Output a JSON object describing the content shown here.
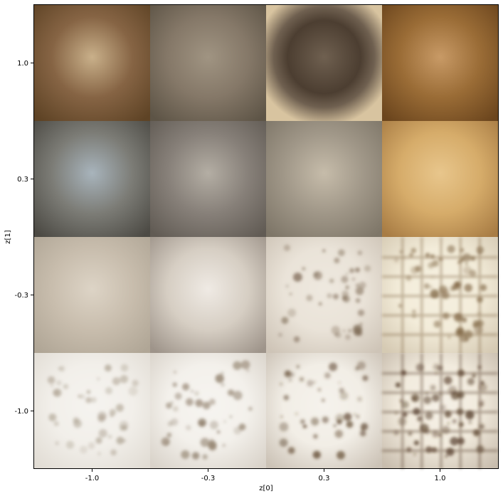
{
  "chart_data": {
    "type": "heatmap",
    "title": "",
    "xlabel": "z[0]",
    "ylabel": "z[1]",
    "x_ticks": [
      "-1.0",
      "-0.3",
      "0.3",
      "1.0"
    ],
    "y_ticks": [
      "1.0",
      "0.3",
      "-0.3",
      "-1.0"
    ],
    "grid": false,
    "cells": [
      {
        "row": 0,
        "col": 0,
        "z0": -1.0,
        "z1": 1.0,
        "appearance": "smooth-blob",
        "base": "#866444",
        "highlight": "#c9b08a",
        "dark": "#5e4325"
      },
      {
        "row": 0,
        "col": 1,
        "z0": -0.3,
        "z1": 1.0,
        "appearance": "smooth-blob",
        "base": "#857868",
        "highlight": "#a09482",
        "dark": "#5d5446"
      },
      {
        "row": 0,
        "col": 2,
        "z0": 0.3,
        "z1": 1.0,
        "appearance": "ring",
        "base": "#6f6050",
        "highlight": "#d8c4a0",
        "dark": "#4c3e31"
      },
      {
        "row": 0,
        "col": 3,
        "z0": 1.0,
        "z1": 1.0,
        "appearance": "smooth-blob",
        "base": "#9a6c36",
        "highlight": "#c89a66",
        "dark": "#6b451d"
      },
      {
        "row": 1,
        "col": 0,
        "z0": -1.0,
        "z1": 0.3,
        "appearance": "smooth-blob",
        "base": "#7c7c76",
        "highlight": "#a8b4bc",
        "dark": "#4c4a44"
      },
      {
        "row": 1,
        "col": 1,
        "z0": -0.3,
        "z1": 0.3,
        "appearance": "smooth-blob",
        "base": "#878079",
        "highlight": "#b4aea4",
        "dark": "#615b54"
      },
      {
        "row": 1,
        "col": 2,
        "z0": 0.3,
        "z1": 0.3,
        "appearance": "smooth-blob",
        "base": "#a09788",
        "highlight": "#c6bcaa",
        "dark": "#7e7668"
      },
      {
        "row": 1,
        "col": 3,
        "z0": 1.0,
        "z1": 0.3,
        "appearance": "smooth-blob",
        "base": "#d6ac6a",
        "highlight": "#e8c68c",
        "dark": "#a87c44"
      },
      {
        "row": 2,
        "col": 0,
        "z0": -1.0,
        "z1": -0.3,
        "appearance": "smooth-blob",
        "base": "#c8bdad",
        "highlight": "#ddd4c6",
        "dark": "#b0a696"
      },
      {
        "row": 2,
        "col": 1,
        "z0": -0.3,
        "z1": -0.3,
        "appearance": "smooth-blob",
        "base": "#d6cec3",
        "highlight": "#efeae4",
        "dark": "#9e948a"
      },
      {
        "row": 2,
        "col": 2,
        "z0": 0.3,
        "z1": -0.3,
        "appearance": "speckled",
        "base": "#eae3d8",
        "highlight": "#fbf8f2",
        "dark": "#7d6a55"
      },
      {
        "row": 2,
        "col": 3,
        "z0": 1.0,
        "z1": -0.3,
        "appearance": "grid",
        "base": "#f3ecda",
        "highlight": "#fdfaf2",
        "dark": "#7e6442"
      },
      {
        "row": 3,
        "col": 0,
        "z0": -1.0,
        "z1": -1.0,
        "appearance": "speckled",
        "base": "#f2efea",
        "highlight": "#ffffff",
        "dark": "#b0a595"
      },
      {
        "row": 3,
        "col": 1,
        "z0": -0.3,
        "z1": -1.0,
        "appearance": "speckled",
        "base": "#f3f0eb",
        "highlight": "#ffffff",
        "dark": "#8b7a66"
      },
      {
        "row": 3,
        "col": 2,
        "z0": 0.3,
        "z1": -1.0,
        "appearance": "speckled",
        "base": "#f1ede6",
        "highlight": "#ffffff",
        "dark": "#5a4128"
      },
      {
        "row": 3,
        "col": 3,
        "z0": 1.0,
        "z1": -1.0,
        "appearance": "grid",
        "base": "#f2ebdd",
        "highlight": "#ffffff",
        "dark": "#4e3520"
      }
    ]
  }
}
